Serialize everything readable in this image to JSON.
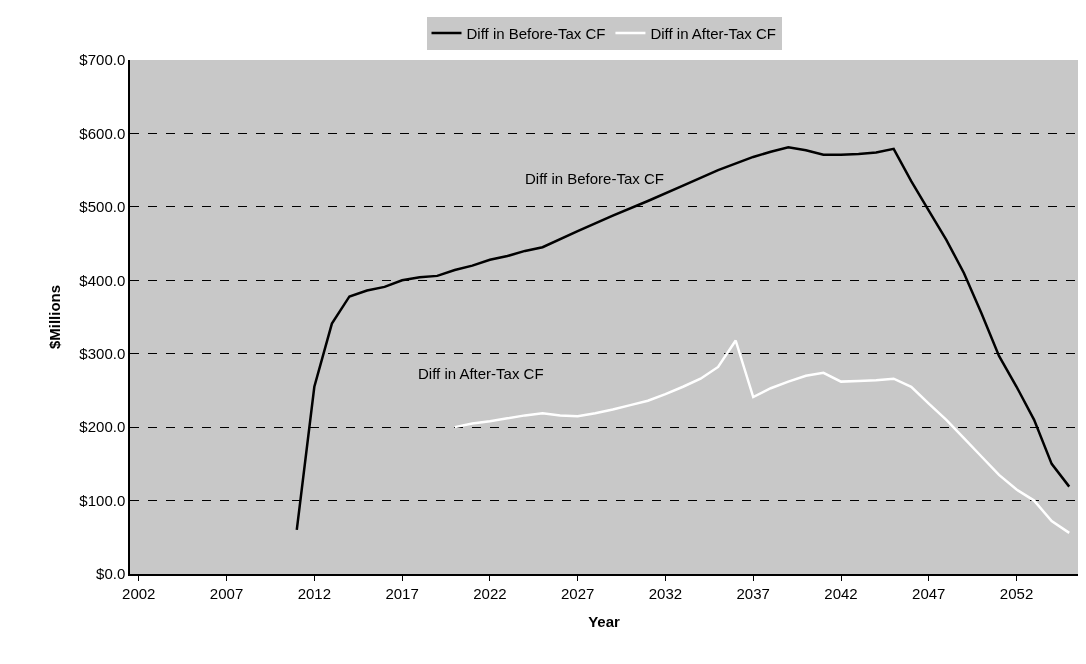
{
  "chart_data": {
    "type": "line",
    "xlabel": "Year",
    "ylabel": "$Millions",
    "xlim": [
      2001.5,
      2055.5
    ],
    "xticks": [
      2002,
      2007,
      2012,
      2017,
      2022,
      2027,
      2032,
      2037,
      2042,
      2047,
      2052
    ],
    "ylim": [
      0,
      700
    ],
    "yticks": [
      {
        "value": 0,
        "label": "$0.0"
      },
      {
        "value": 100,
        "label": "$100.0"
      },
      {
        "value": 200,
        "label": "$200.0"
      },
      {
        "value": 300,
        "label": "$300.0"
      },
      {
        "value": 400,
        "label": "$400.0"
      },
      {
        "value": 500,
        "label": "$500.0"
      },
      {
        "value": 600,
        "label": "$600.0"
      },
      {
        "value": 700,
        "label": "$700.0"
      }
    ],
    "grid": "y",
    "legend": "top",
    "line_style": "solid",
    "series": [
      {
        "name": "Diff in Before-Tax CF",
        "color": "#000000",
        "x": [
          2011,
          2012,
          2013,
          2014,
          2015,
          2016,
          2017,
          2018,
          2019,
          2020,
          2021,
          2022,
          2023,
          2024,
          2025,
          2027,
          2029,
          2031,
          2033,
          2035,
          2037,
          2038,
          2039,
          2040,
          2041,
          2042,
          2043,
          2044,
          2045,
          2046,
          2047,
          2048,
          2049,
          2050,
          2051,
          2052,
          2053,
          2054,
          2055
        ],
        "values": [
          60,
          255,
          341,
          378,
          386,
          391,
          400,
          404,
          406,
          414,
          420,
          428,
          433,
          440,
          445,
          467,
          488,
          508,
          529,
          550,
          568,
          575,
          581,
          577,
          571,
          571,
          572,
          574,
          579,
          535,
          495,
          455,
          410,
          355,
          297,
          255,
          210,
          150,
          119
        ]
      },
      {
        "name": "Diff in After-Tax CF",
        "color": "#ffffff",
        "x": [
          2020,
          2021,
          2022,
          2023,
          2024,
          2025,
          2026,
          2027,
          2028,
          2029,
          2030,
          2031,
          2032,
          2033,
          2034,
          2035,
          2036,
          2037,
          2038,
          2039,
          2040,
          2041,
          2042,
          2043,
          2044,
          2045,
          2046,
          2047,
          2048,
          2049,
          2050,
          2051,
          2052,
          2053,
          2054,
          2055
        ],
        "values": [
          200,
          205,
          208,
          212,
          216,
          219,
          216,
          215,
          219,
          224,
          230,
          236,
          245,
          255,
          266,
          282,
          318,
          241,
          253,
          262,
          270,
          274,
          262,
          263,
          264,
          266,
          255,
          232,
          210,
          185,
          160,
          135,
          115,
          100,
          72,
          56
        ]
      }
    ],
    "annotations": [
      "Diff in Before-Tax CF",
      "Diff in After-Tax CF"
    ]
  }
}
